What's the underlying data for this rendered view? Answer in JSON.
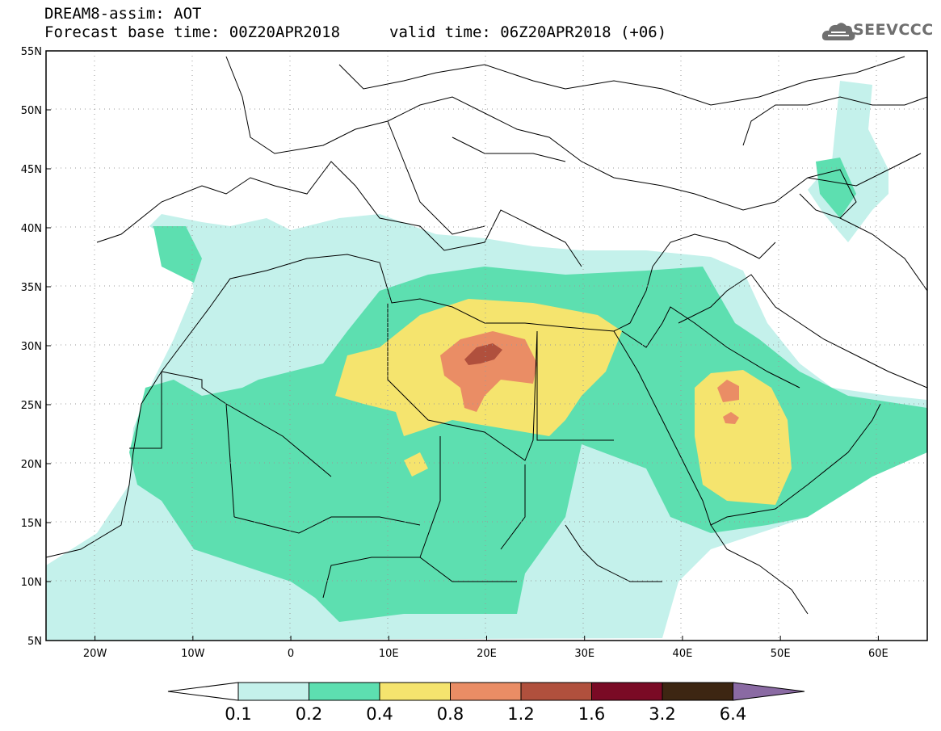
{
  "header": {
    "model_line": "DREAM8-assim: AOT",
    "base_time": "Forecast base time: 00Z20APR2018",
    "valid_time": "valid time: 06Z20APR2018 (+06)"
  },
  "logo": {
    "text": "SEEVCCC",
    "icon": "cloud-logo-icon"
  },
  "map": {
    "lat_labels": [
      "55N",
      "50N",
      "45N",
      "40N",
      "35N",
      "30N",
      "25N",
      "20N",
      "15N",
      "10N",
      "5N"
    ],
    "lon_labels": [
      "20W",
      "10W",
      "0",
      "10E",
      "20E",
      "30E",
      "40E",
      "50E",
      "60E"
    ],
    "lon_range": [
      -25,
      65
    ],
    "lat_range": [
      5,
      55
    ],
    "grid": "dotted"
  },
  "colorbar": {
    "labels": [
      "0.1",
      "0.2",
      "0.4",
      "0.8",
      "1.2",
      "1.6",
      "3.2",
      "6.4"
    ],
    "colors": [
      "#ffffff",
      "#c4f1eb",
      "#5ddfb0",
      "#f5e46e",
      "#ea8d65",
      "#b0503d",
      "#7a0a25",
      "#3d2612",
      "#8a6aa3"
    ]
  }
}
